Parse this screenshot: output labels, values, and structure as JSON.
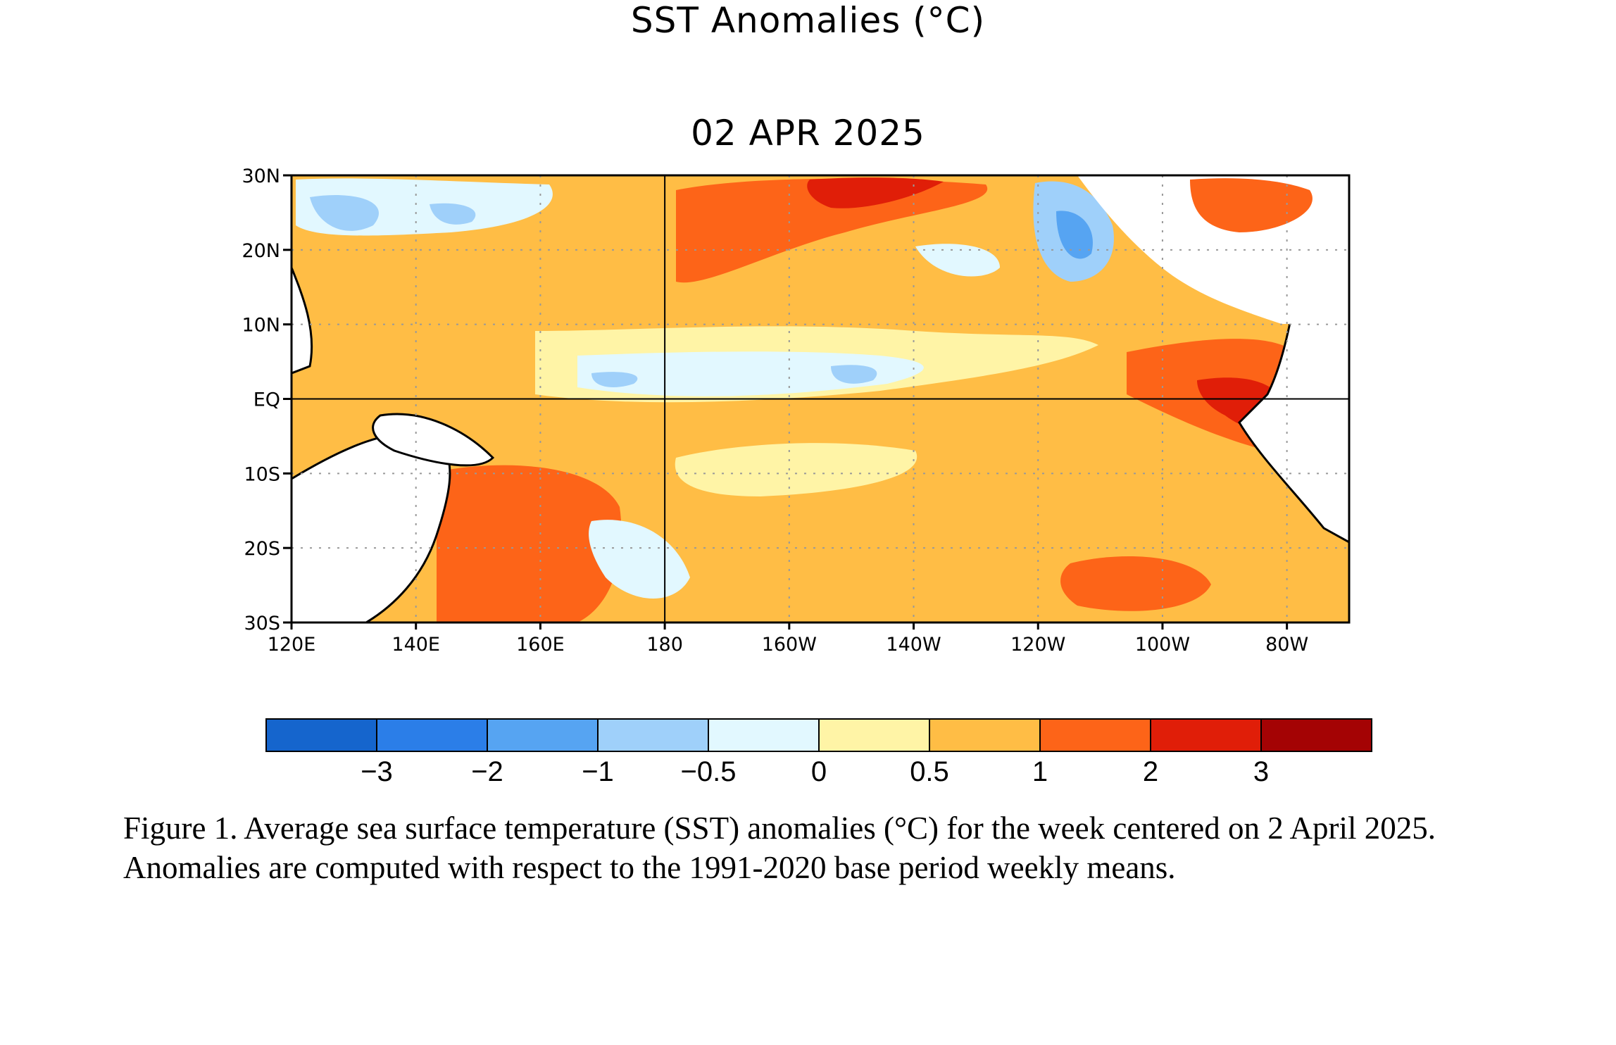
{
  "title": "SST Anomalies (°C)",
  "date": "02 APR 2025",
  "map": {
    "region": "Tropical Pacific Ocean",
    "lat_labels": [
      "30N",
      "20N",
      "10N",
      "EQ",
      "10S",
      "20S",
      "30S"
    ],
    "lon_labels": [
      "120E",
      "140E",
      "160E",
      "180",
      "160W",
      "140W",
      "120W",
      "100W",
      "80W"
    ],
    "lat_range": [
      -30,
      30
    ],
    "lon_range_deg_east": [
      120,
      290
    ],
    "grid": "dotted"
  },
  "colorbar": {
    "tick_labels": [
      "−3",
      "−2",
      "−1",
      "−0.5",
      "0",
      "0.5",
      "1",
      "2",
      "3"
    ],
    "colors": [
      "#1565cd",
      "#2b7ee8",
      "#56a4f2",
      "#9fd0fa",
      "#e2f8ff",
      "#fff4a6",
      "#ffbd45",
      "#fd6418",
      "#e01e08",
      "#a40304"
    ]
  },
  "caption": "Figure 1. Average sea surface temperature (SST) anomalies (°C) for the week centered on 2 April 2025.  Anomalies are computed with respect to the 1991-2020 base period weekly means."
}
